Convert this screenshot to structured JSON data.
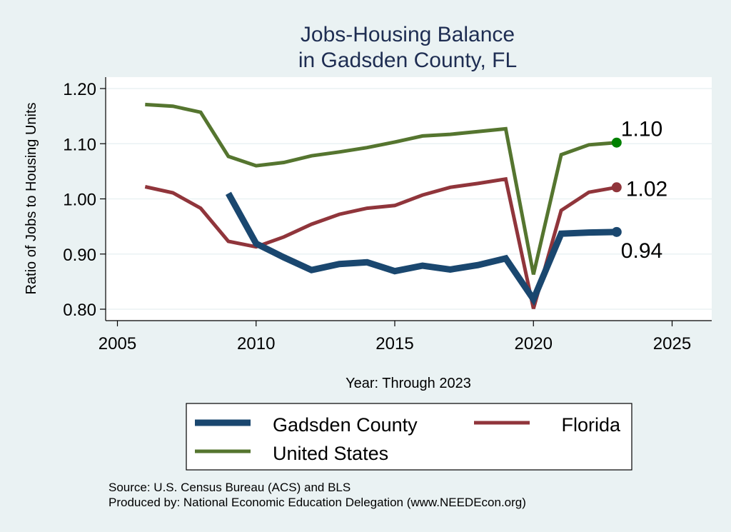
{
  "chart_data": {
    "type": "line",
    "title": [
      "Jobs-Housing Balance",
      "in Gadsden County, FL"
    ],
    "xlabel": "Year: Through 2023",
    "ylabel": "Ratio of Jobs to Housing Units",
    "xlim": [
      2005,
      2025
    ],
    "ylim": [
      0.8,
      1.2
    ],
    "xticks": [
      2005,
      2010,
      2015,
      2020,
      2025
    ],
    "xtick_labels": [
      "2005",
      "2010",
      "2015",
      "2020",
      "2025"
    ],
    "yticks": [
      0.8,
      0.9,
      1.0,
      1.1,
      1.2
    ],
    "ytick_labels": [
      "0.80",
      "0.90",
      "1.00",
      "1.10",
      "1.20"
    ],
    "grid": true,
    "legend_position": "bottom",
    "series": [
      {
        "name": "Gadsden County",
        "color": "#1a476f",
        "marker_color": "#1a476f",
        "end_label": "0.94",
        "x": [
          2009,
          2010,
          2011,
          2012,
          2013,
          2014,
          2015,
          2016,
          2017,
          2018,
          2019,
          2020,
          2021,
          2022,
          2023
        ],
        "values": [
          1.01,
          0.919,
          0.894,
          0.871,
          0.882,
          0.885,
          0.869,
          0.879,
          0.872,
          0.88,
          0.892,
          0.818,
          0.937,
          0.939,
          0.94
        ]
      },
      {
        "name": "Florida",
        "color": "#90353b",
        "marker_color": "#90353b",
        "end_label": "1.02",
        "x": [
          2006,
          2007,
          2008,
          2009,
          2010,
          2011,
          2012,
          2013,
          2014,
          2015,
          2016,
          2017,
          2018,
          2019,
          2020,
          2021,
          2022,
          2023
        ],
        "values": [
          1.022,
          1.011,
          0.983,
          0.923,
          0.913,
          0.931,
          0.954,
          0.972,
          0.983,
          0.988,
          1.007,
          1.021,
          1.028,
          1.036,
          0.801,
          0.979,
          1.012,
          1.021
        ]
      },
      {
        "name": "United States",
        "color": "#55752f",
        "marker_color": "#008000",
        "end_label": "1.10",
        "x": [
          2006,
          2007,
          2008,
          2009,
          2010,
          2011,
          2012,
          2013,
          2014,
          2015,
          2016,
          2017,
          2018,
          2019,
          2020,
          2021,
          2022,
          2023
        ],
        "values": [
          1.171,
          1.168,
          1.157,
          1.077,
          1.06,
          1.066,
          1.078,
          1.085,
          1.093,
          1.103,
          1.114,
          1.117,
          1.122,
          1.127,
          0.863,
          1.08,
          1.098,
          1.102
        ]
      }
    ],
    "notes": [
      "Source: U.S. Census Bureau (ACS) and BLS",
      "Produced by: National Economic Education Delegation (www.NEEDEcon.org)"
    ]
  }
}
